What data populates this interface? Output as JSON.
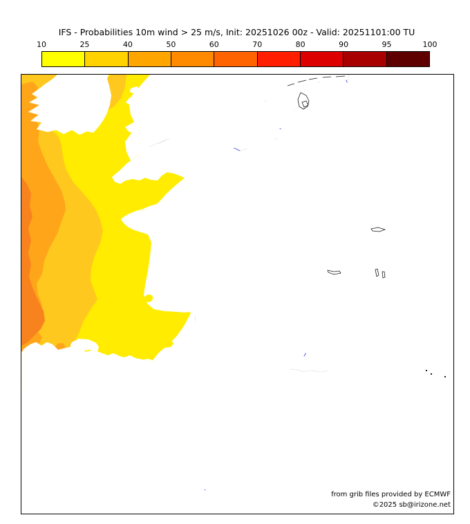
{
  "title": "IFS - Probabilities 10m wind > 25 m/s, Init: 20251026 00z - Valid: 20251101:00 TU",
  "colorbar": {
    "tick_labels": [
      "10",
      "25",
      "40",
      "50",
      "60",
      "70",
      "80",
      "90",
      "95",
      "100"
    ],
    "segment_colors": [
      "#FFFF00",
      "#FFD200",
      "#FFA500",
      "#FF8A00",
      "#FF6400",
      "#FF1E00",
      "#DC0000",
      "#A80000",
      "#5F0000"
    ]
  },
  "map_fill_colors": {
    "p10": "#FFEC00",
    "p25": "#FFC81E",
    "p40": "#FFA519",
    "p50": "#F8821E"
  },
  "credits": {
    "line1": "from grib files provided by ECMWF",
    "line2": "©2025 sb@irizone.net"
  }
}
